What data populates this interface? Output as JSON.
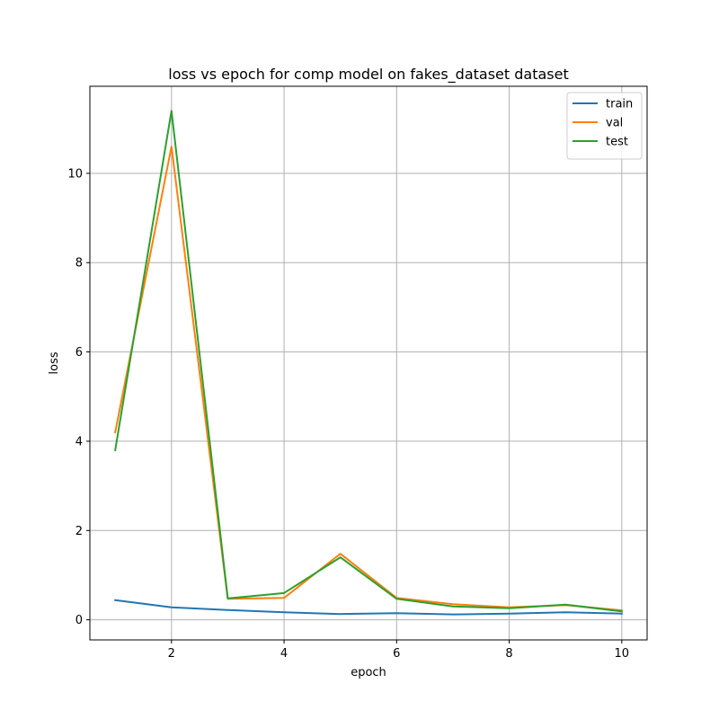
{
  "chart_data": {
    "type": "line",
    "title": "loss vs epoch for comp model on fakes_dataset dataset",
    "xlabel": "epoch",
    "ylabel": "loss",
    "x": [
      1,
      2,
      3,
      4,
      5,
      6,
      7,
      8,
      9,
      10
    ],
    "xlim": [
      0.55,
      10.45
    ],
    "ylim": [
      -0.45,
      11.95
    ],
    "xticks": [
      2,
      4,
      6,
      8,
      10
    ],
    "yticks": [
      0,
      2,
      4,
      6,
      8,
      10
    ],
    "grid": true,
    "legend_position": "top-right",
    "series": [
      {
        "name": "train",
        "color": "#1f77b4",
        "values": [
          0.44,
          0.28,
          0.22,
          0.17,
          0.13,
          0.15,
          0.12,
          0.14,
          0.17,
          0.14
        ]
      },
      {
        "name": "val",
        "color": "#ff7f0e",
        "values": [
          4.2,
          10.6,
          0.47,
          0.49,
          1.48,
          0.49,
          0.35,
          0.28,
          0.33,
          0.21
        ]
      },
      {
        "name": "test",
        "color": "#2ca02c",
        "values": [
          3.8,
          11.4,
          0.48,
          0.6,
          1.4,
          0.47,
          0.3,
          0.26,
          0.34,
          0.19
        ]
      }
    ]
  }
}
